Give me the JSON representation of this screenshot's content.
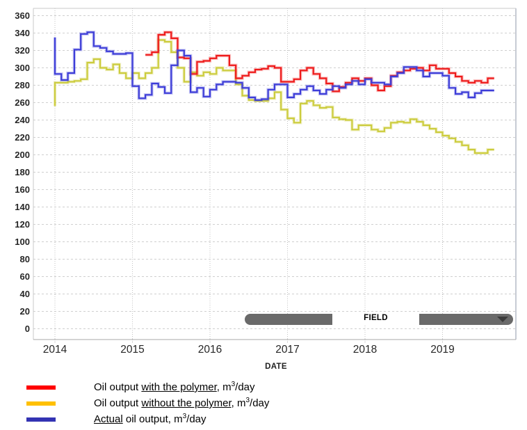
{
  "chart_data": {
    "type": "step-line",
    "title": "",
    "xlabel": "DATE",
    "ylabel": "",
    "grid": true,
    "legend_position": "bottom-left",
    "x_axis": {
      "years": [
        2014,
        2015,
        2016,
        2017,
        2018,
        2019
      ],
      "x_end": 2019.75
    },
    "y_axis": {
      "min": 0,
      "max": 360,
      "tick_step": 20,
      "ticks": [
        360,
        340,
        320,
        300,
        280,
        260,
        240,
        220,
        200,
        180,
        160,
        140,
        120,
        100,
        80,
        60,
        40,
        20,
        0
      ]
    },
    "series": [
      {
        "name": "Oil output with the polymer, m3/day",
        "color": "#ee1b1b",
        "x_start": 2015.1667,
        "step_months": 1,
        "values": [
          315,
          318,
          338,
          341,
          334,
          312,
          311,
          293,
          307,
          308,
          311,
          314,
          314,
          303,
          288,
          291,
          295,
          298,
          299,
          302,
          300,
          284,
          284,
          287,
          297,
          300,
          293,
          288,
          282,
          273,
          278,
          283,
          288,
          285,
          288,
          280,
          274,
          279,
          291,
          295,
          297,
          299,
          300,
          297,
          303,
          299,
          299,
          294,
          290,
          285,
          283,
          285,
          283,
          288
        ]
      },
      {
        "name": "Oil output without the polymer, m3/day",
        "color": "#cccc3d",
        "x_start": 2014.0,
        "step_months": 1,
        "pre_value": 256,
        "values": [
          283,
          283,
          284,
          285,
          287,
          306,
          310,
          300,
          298,
          304,
          294,
          288,
          294,
          288,
          294,
          300,
          332,
          330,
          318,
          300,
          284,
          295,
          291,
          295,
          293,
          300,
          297,
          297,
          281,
          268,
          263,
          262,
          262,
          265,
          272,
          252,
          242,
          237,
          259,
          262,
          257,
          254,
          255,
          243,
          241,
          240,
          229,
          234,
          234,
          229,
          227,
          231,
          237,
          238,
          237,
          241,
          238,
          234,
          230,
          226,
          222,
          219,
          215,
          211,
          206,
          202,
          202,
          206
        ]
      },
      {
        "name": "Actual oil output, m3/day",
        "color": "#3d3dd8",
        "x_start": 2014.0,
        "step_months": 1,
        "pre_value": 335,
        "values": [
          293,
          286,
          294,
          321,
          339,
          341,
          325,
          323,
          319,
          316,
          316,
          317,
          279,
          265,
          269,
          282,
          278,
          271,
          303,
          320,
          314,
          272,
          277,
          267,
          275,
          281,
          284,
          284,
          283,
          277,
          266,
          263,
          264,
          275,
          281,
          281,
          266,
          270,
          275,
          279,
          274,
          270,
          275,
          279,
          277,
          281,
          285,
          281,
          287,
          283,
          283,
          281,
          290,
          294,
          301,
          301,
          297,
          290,
          294,
          294,
          291,
          277,
          270,
          272,
          266,
          271,
          274,
          274
        ]
      }
    ]
  },
  "slider": {
    "label": "FIELD"
  },
  "legend": {
    "items": [
      {
        "label": "Oil output with the polymer, m3/day",
        "color": "#ff0000",
        "pre": "Oil output ",
        "underline": "with the polymer",
        "mid": ", m",
        "sup": "3",
        "post": "/day"
      },
      {
        "label": "Oil output without the polymer, m3/day",
        "color": "#ffc000",
        "pre": "Oil output ",
        "underline": "without the polymer",
        "mid": ", m",
        "sup": "3",
        "post": "/day"
      },
      {
        "label": "Actual oil output, m3/day",
        "color": "#3333b3",
        "pre": "",
        "underline": "Actual",
        "mid": " oil output, m",
        "sup": "3",
        "post": "/day"
      }
    ]
  },
  "ui_colors": {
    "grid": "#cfcfcf",
    "plot_border": "#c9c9c9",
    "axis_text": "#262626",
    "scrollbar_gray": "#6a6a6a",
    "arrow": "#3b3b3b"
  }
}
